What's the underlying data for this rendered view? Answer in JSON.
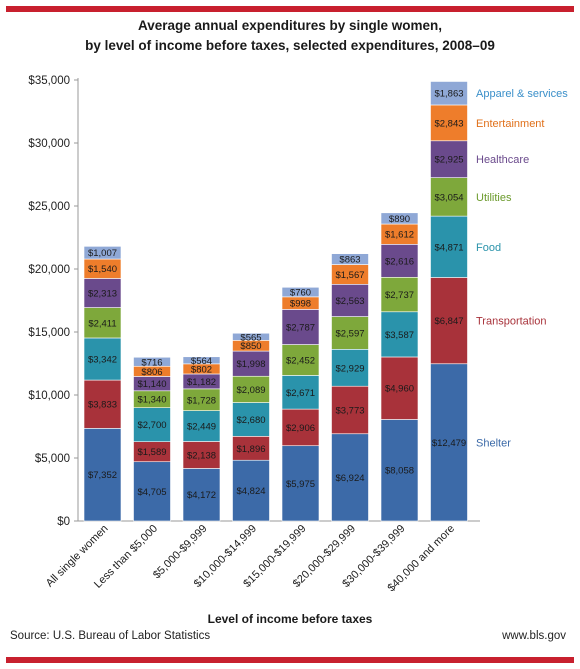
{
  "chart_data": {
    "type": "bar",
    "stacked": true,
    "title": "Average annual expenditures by single women,",
    "subtitle": "by level of income before taxes, selected expenditures, 2008–09",
    "xlabel": "Level of income  before taxes",
    "ylabel": "",
    "ylim": [
      0,
      35000
    ],
    "yticks": [
      "$0",
      "$5,000",
      "$10,000",
      "$15,000",
      "$20,000",
      "$25,000",
      "$30,000",
      "$35,000"
    ],
    "ytick_values": [
      0,
      5000,
      10000,
      15000,
      20000,
      25000,
      30000,
      35000
    ],
    "grid": false,
    "legend": "labels beside last bar",
    "categories": [
      "All single women",
      "Less than $5,000",
      "$5,000-$9,999",
      "$10,000-$14,999",
      "$15,000-$19,999",
      "$20,000-$29,999",
      "$30,000-$39,999",
      "$40,000 and more"
    ],
    "series": [
      {
        "name": "Shelter",
        "color": "#3c6aa8",
        "label_color": "#3c6aa8",
        "values": [
          7352,
          4705,
          4172,
          4824,
          5975,
          6924,
          8058,
          12479
        ],
        "labels": [
          "$7,352",
          "$4,705",
          "$4,172",
          "$4,824",
          "$5,975",
          "$6,924",
          "$8,058",
          "$12,479"
        ]
      },
      {
        "name": "Transportation",
        "color": "#a8323a",
        "label_color": "#a8323a",
        "values": [
          3833,
          1589,
          2138,
          1896,
          2906,
          3773,
          4960,
          6847
        ],
        "labels": [
          "$3,833",
          "$1,589",
          "$2,138",
          "$1,896",
          "$2,906",
          "$3,773",
          "$4,960",
          "$6,847"
        ]
      },
      {
        "name": "Food",
        "color": "#2a93ab",
        "label_color": "#2a93ab",
        "values": [
          3342,
          2700,
          2449,
          2680,
          2671,
          2929,
          3587,
          4871
        ],
        "labels": [
          "$3,342",
          "$2,700",
          "$2,449",
          "$2,680",
          "$2,671",
          "$2,929",
          "$3,587",
          "$4,871"
        ]
      },
      {
        "name": "Utilities",
        "color": "#7ea83b",
        "label_color": "#6b9a2b",
        "values": [
          2411,
          1340,
          1728,
          2089,
          2452,
          2597,
          2737,
          3054
        ],
        "labels": [
          "$2,411",
          "$1,340",
          "$1,728",
          "$2,089",
          "$2,452",
          "$2,597",
          "$2,737",
          "$3,054"
        ]
      },
      {
        "name": "Healthcare",
        "color": "#6a4a8c",
        "label_color": "#6a4a8c",
        "values": [
          2313,
          1140,
          1182,
          1998,
          2787,
          2563,
          2616,
          2925
        ],
        "labels": [
          "$2,313",
          "$1,140",
          "$1,182",
          "$1,998",
          "$2,787",
          "$2,563",
          "$2,616",
          "$2,925"
        ]
      },
      {
        "name": "Entertainment",
        "color": "#ee7d2b",
        "label_color": "#e0701a",
        "values": [
          1540,
          806,
          802,
          850,
          998,
          1567,
          1612,
          2843
        ],
        "labels": [
          "$1,540",
          "$806",
          "$802",
          "$850",
          "$998",
          "$1,567",
          "$1,612",
          "$2,843"
        ]
      },
      {
        "name": "Apparel & services",
        "color": "#8fa8d6",
        "label_color": "#3a8fc9",
        "values": [
          1007,
          716,
          564,
          565,
          760,
          863,
          890,
          1863
        ],
        "labels": [
          "$1,007",
          "$716",
          "$564",
          "$565",
          "$760",
          "$863",
          "$890",
          "$1,863"
        ]
      }
    ]
  },
  "footer": {
    "source": "Source: U.S. Bureau of Labor Statistics",
    "site": "www.bls.gov"
  }
}
